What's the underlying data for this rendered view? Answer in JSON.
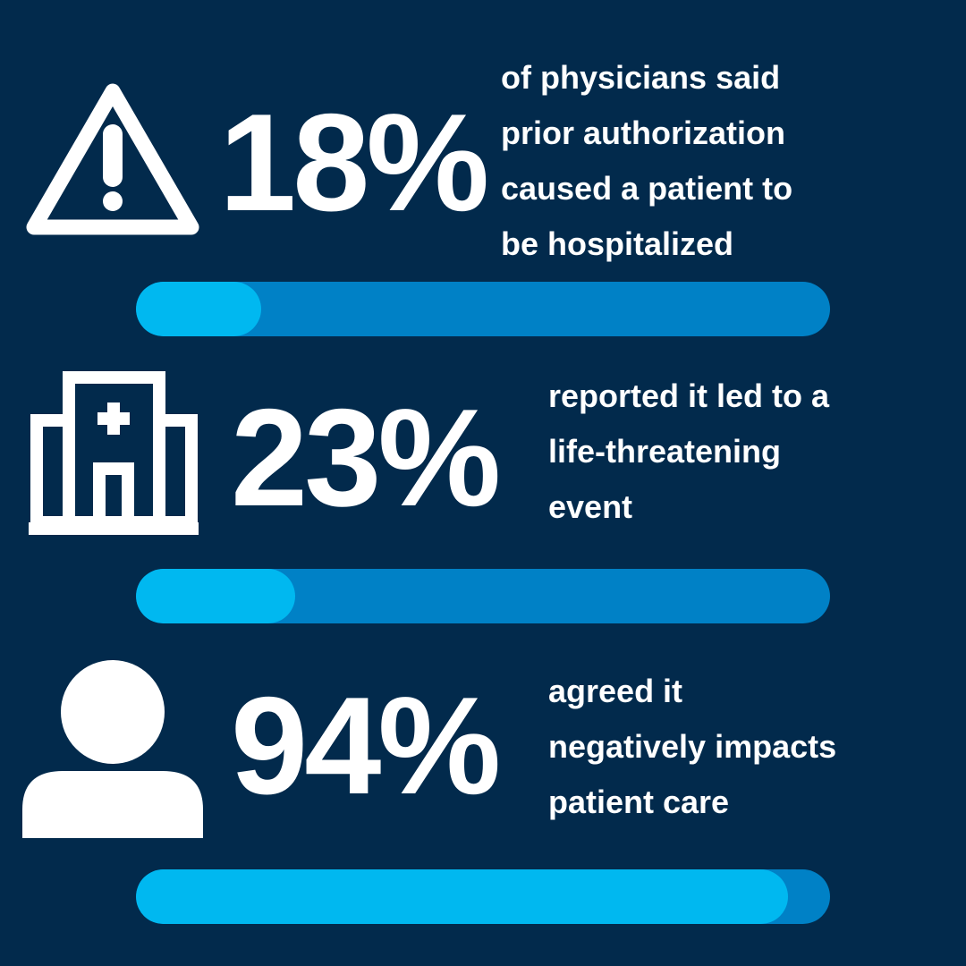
{
  "chart_data": {
    "type": "progress",
    "categories": [
      "of physicians said\nprior authorization\ncaused a patient to\nbe hospitalized",
      "reported it led to a\nlife-threatening\nevent",
      "agreed it\nnegatively impacts\npatient care"
    ],
    "values": [
      18,
      23,
      94
    ],
    "value_labels": [
      "18%",
      "23%",
      "94%"
    ],
    "xlim": [
      0,
      100
    ],
    "color": "#00b8f0",
    "track_color": "#0081c6"
  }
}
